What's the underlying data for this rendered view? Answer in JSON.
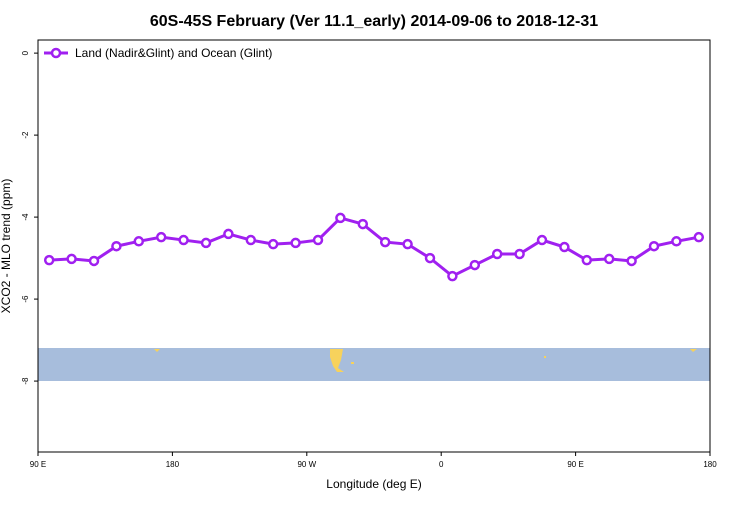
{
  "chart_data": {
    "type": "line",
    "title": "60S-45S February (Ver 11.1_early)   2014-09-06 to 2018-12-31",
    "x_label": "Longitude (deg E)",
    "y_label": "XCO2 - MLO trend (ppm)",
    "x": [
      97.5,
      112.5,
      127.5,
      142.5,
      157.5,
      172.5,
      187.5,
      202.5,
      217.5,
      232.5,
      247.5,
      262.5,
      277.5,
      292.5,
      307.5,
      322.5,
      337.5,
      352.5,
      367.5,
      382.5,
      397.5,
      412.5,
      427.5,
      442.5,
      457.5,
      472.5,
      487.5,
      502.5,
      517.5,
      532.5
    ],
    "series": [
      {
        "name": "Land (Nadir&Glint) and Ocean (Glint)",
        "color": "#a020f0",
        "values": [
          -5.05,
          -5.02,
          -5.07,
          -4.71,
          -4.59,
          -4.49,
          -4.56,
          -4.63,
          -4.41,
          -4.56,
          -4.66,
          -4.63,
          -4.56,
          -4.02,
          -4.17,
          -4.61,
          -4.66,
          -5.0,
          -5.44,
          -5.17,
          -4.9,
          -4.9,
          -4.56,
          -4.73,
          -5.05,
          -5.02,
          -5.07,
          -4.71,
          -4.59,
          -4.49
        ]
      }
    ],
    "xlim": [
      90,
      540
    ],
    "xticks": [
      {
        "value": 90,
        "label": "90 E"
      },
      180,
      {
        "value": 270,
        "label": "90 W"
      },
      {
        "value": 360,
        "label": "0"
      },
      {
        "value": 450,
        "label": "90 E"
      },
      {
        "value": 540,
        "label": "180"
      }
    ],
    "ylim": [
      -9.73,
      0.32
    ],
    "yticks": [
      0,
      -2,
      -4,
      -6,
      -8
    ],
    "legend": "top-left"
  }
}
